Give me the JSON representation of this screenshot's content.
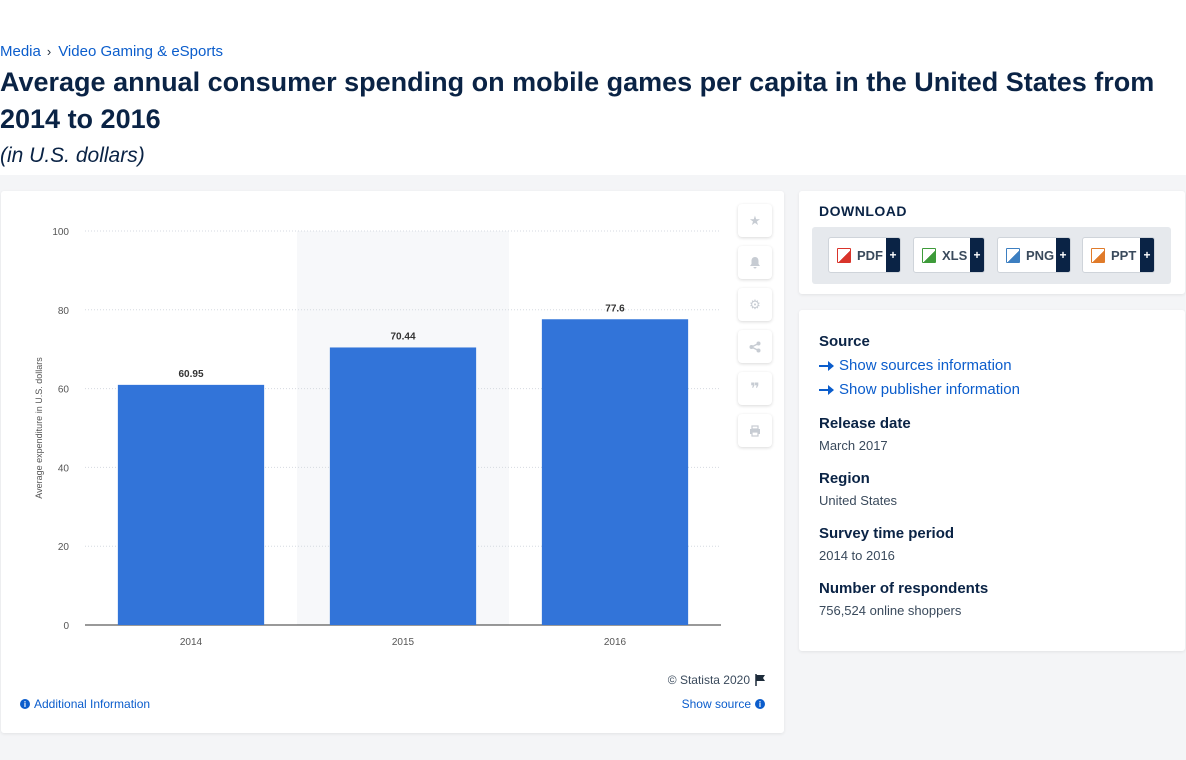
{
  "breadcrumb": {
    "items": [
      "Media",
      "Video Gaming & eSports"
    ],
    "separator": "›"
  },
  "page": {
    "title": "Average annual consumer spending on mobile games per capita in the United States from 2014 to 2016",
    "subtitle": "(in U.S. dollars)"
  },
  "chart_data": {
    "type": "bar",
    "categories": [
      "2014",
      "2015",
      "2016"
    ],
    "values": [
      60.95,
      70.44,
      77.6
    ],
    "data_labels": [
      "60.95",
      "70.44",
      "77.6"
    ],
    "ylabel": "Average expenditure in U.S. dollars",
    "xlabel": "",
    "ylim": [
      0,
      100
    ],
    "yticks": [
      0,
      20,
      40,
      60,
      80,
      100
    ],
    "grid": true,
    "highlighted_category": "2015",
    "bar_color": "#3274d9",
    "legend": "none"
  },
  "chart_footer": {
    "copyright": "© Statista 2020",
    "additional_info": "Additional Information",
    "show_source": "Show source"
  },
  "toolbar": {
    "icons": [
      "star-icon",
      "bell-icon",
      "gear-icon",
      "share-icon",
      "quote-icon",
      "print-icon"
    ]
  },
  "download": {
    "title": "DOWNLOAD",
    "buttons": [
      {
        "label": "PDF",
        "color": "#d9342b"
      },
      {
        "label": "XLS",
        "color": "#3e9b3a"
      },
      {
        "label": "PNG",
        "color": "#3d7fc1"
      },
      {
        "label": "PPT",
        "color": "#e07b2a"
      }
    ],
    "plus": "+"
  },
  "source": {
    "label": "Source",
    "links": [
      "Show sources information",
      "Show publisher information"
    ],
    "fields": [
      {
        "label": "Release date",
        "value": "March 2017"
      },
      {
        "label": "Region",
        "value": "United States"
      },
      {
        "label": "Survey time period",
        "value": "2014 to 2016"
      },
      {
        "label": "Number of respondents",
        "value": "756,524 online shoppers"
      }
    ]
  },
  "colors": {
    "accent": "#0b5dcc",
    "title": "#0a2345"
  }
}
